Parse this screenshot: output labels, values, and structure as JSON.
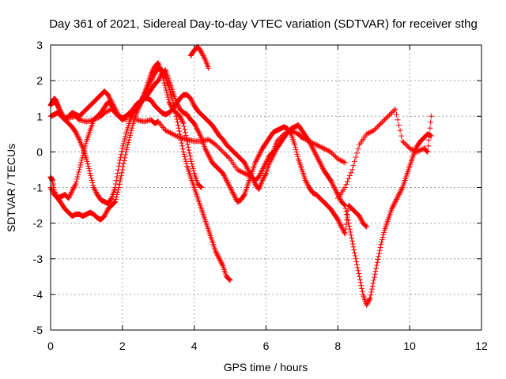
{
  "chart_data": {
    "type": "scatter",
    "title": "Day 361 of 2021, Sidereal Day-to-day VTEC variation (SDTVAR) for receiver sthg",
    "xlabel": "GPS time / hours",
    "ylabel": "SDTVAR / TECUs",
    "xlim": [
      0,
      12
    ],
    "ylim": [
      -5,
      3
    ],
    "xticks": [
      "0",
      "2",
      "4",
      "6",
      "8",
      "10",
      "12"
    ],
    "yticks": [
      "-5",
      "-4",
      "-3",
      "-2",
      "-1",
      "0",
      "1",
      "2",
      "3"
    ],
    "grid": true,
    "marker": "+",
    "color": "#ff0000",
    "series": [
      {
        "x": [
          0.0,
          0.1,
          0.2,
          0.3,
          0.5,
          0.7,
          0.8,
          1.0,
          1.2,
          1.4,
          1.5,
          1.7,
          1.9,
          2.1,
          2.4,
          2.6,
          2.8,
          2.9,
          3.0,
          3.2,
          3.4,
          3.6,
          3.8,
          4.0,
          4.2,
          4.4,
          4.6,
          4.8,
          5.0,
          5.2,
          5.4,
          5.6,
          5.7,
          5.8,
          5.9,
          6.0,
          6.1,
          6.2,
          6.3,
          6.5,
          6.7,
          6.9,
          7.0,
          7.2,
          7.4,
          7.6,
          7.8,
          8.0,
          8.2
        ],
        "y": [
          1.0,
          1.05,
          1.1,
          1.0,
          0.95,
          1.0,
          0.9,
          0.85,
          0.9,
          1.0,
          1.1,
          1.2,
          1.0,
          0.9,
          0.9,
          0.85,
          0.9,
          0.8,
          0.85,
          0.6,
          0.5,
          0.4,
          0.35,
          0.3,
          0.3,
          0.35,
          0.2,
          0.0,
          -0.2,
          -0.5,
          -0.6,
          -0.7,
          -0.8,
          -0.7,
          -0.5,
          -0.3,
          -0.1,
          0.0,
          0.3,
          0.5,
          0.6,
          0.5,
          0.4,
          0.3,
          0.2,
          0.1,
          0.0,
          -0.2,
          -0.3
        ]
      },
      {
        "x": [
          0.0,
          0.05,
          0.1,
          0.15,
          0.2,
          0.3,
          0.4,
          0.5,
          0.6,
          0.7,
          0.8,
          0.9,
          1.0,
          1.1,
          1.2,
          1.3,
          1.4,
          1.5,
          1.6,
          1.7,
          1.8,
          1.9,
          2.0,
          2.1,
          2.2,
          2.3,
          2.4,
          2.5,
          2.6,
          2.7,
          2.8,
          2.9,
          3.0,
          3.1,
          3.2,
          3.3,
          3.4,
          3.5,
          3.6,
          3.7,
          3.8,
          3.9,
          4.0,
          4.1,
          4.2
        ],
        "y": [
          1.3,
          1.4,
          1.5,
          1.45,
          1.3,
          1.1,
          0.9,
          0.8,
          0.7,
          0.55,
          0.35,
          0.1,
          -0.2,
          -0.6,
          -1.0,
          -1.2,
          -1.35,
          -1.4,
          -1.45,
          -1.3,
          -1.0,
          -0.4,
          0.1,
          0.5,
          0.85,
          1.1,
          1.3,
          1.4,
          1.6,
          1.9,
          2.2,
          2.4,
          2.5,
          2.2,
          1.8,
          1.4,
          1.2,
          1.1,
          1.0,
          0.8,
          0.3,
          -0.2,
          -0.6,
          -0.9,
          -1.0
        ]
      },
      {
        "x": [
          0.0,
          0.05,
          0.1,
          0.2,
          0.3,
          0.4,
          0.5,
          0.6,
          0.7,
          0.8,
          0.9,
          1.0,
          1.1,
          1.2,
          1.3,
          1.4,
          1.5,
          1.6,
          1.7,
          1.8,
          1.9,
          2.0,
          2.1,
          2.2,
          2.3,
          2.4,
          2.5,
          2.6,
          2.7,
          2.8,
          2.9,
          3.0,
          3.1,
          3.2,
          3.3,
          3.4,
          3.5,
          3.6,
          3.7,
          3.8,
          3.9,
          4.0,
          4.1,
          4.2,
          4.3,
          4.4,
          4.5,
          4.6,
          4.7,
          4.8,
          4.9,
          5.0
        ],
        "y": [
          -0.7,
          -0.8,
          -1.1,
          -1.3,
          -1.45,
          -1.6,
          -1.7,
          -1.8,
          -1.75,
          -1.75,
          -1.8,
          -1.75,
          -1.7,
          -1.75,
          -1.85,
          -1.9,
          -1.8,
          -1.6,
          -1.5,
          -1.4,
          -1.0,
          -0.5,
          0.0,
          0.4,
          0.8,
          1.1,
          1.35,
          1.6,
          1.8,
          2.0,
          2.2,
          2.35,
          2.3,
          2.1,
          1.8,
          1.45,
          1.0,
          0.5,
          0.0,
          -0.4,
          -0.7,
          -1.0,
          -1.3,
          -1.6,
          -1.9,
          -2.2,
          -2.5,
          -2.8,
          -3.0,
          -3.2,
          -3.5,
          -3.6
        ]
      },
      {
        "x": [
          0.0,
          0.1,
          0.2,
          0.3,
          0.4,
          0.5,
          0.6,
          0.7,
          0.8,
          0.9,
          1.0,
          1.1,
          1.2,
          1.3,
          1.4,
          1.5,
          1.6,
          1.7,
          1.8,
          1.9,
          2.0,
          2.1,
          2.2,
          2.3,
          2.4,
          2.5,
          2.6,
          2.7,
          2.8,
          2.9,
          3.0,
          3.1,
          3.2,
          3.3,
          3.4,
          3.5,
          3.6,
          3.7,
          3.8,
          3.9,
          4.0,
          4.1,
          4.2,
          4.3,
          4.4,
          4.5,
          4.6,
          4.7,
          4.8,
          4.9,
          5.0,
          5.1,
          5.2,
          5.3,
          5.4,
          5.5,
          5.6,
          5.7,
          5.8,
          5.9,
          6.0,
          6.1,
          6.2,
          6.3,
          6.4,
          6.5,
          6.6,
          6.7,
          6.8,
          6.9,
          7.0,
          7.1,
          7.2,
          7.3,
          7.4,
          7.5,
          7.6,
          7.7,
          7.8,
          7.9,
          8.0,
          8.1,
          8.2,
          8.3,
          8.4,
          8.5,
          8.6,
          8.7,
          8.8
        ],
        "y": [
          -1.0,
          -1.2,
          -1.3,
          -1.25,
          -1.2,
          -1.3,
          -1.1,
          -0.9,
          -0.5,
          -0.1,
          0.3,
          0.6,
          0.9,
          1.0,
          1.1,
          1.25,
          1.4,
          1.3,
          1.1,
          1.0,
          0.95,
          1.0,
          1.05,
          1.1,
          1.2,
          1.35,
          1.5,
          1.6,
          1.75,
          1.9,
          2.0,
          2.2,
          2.3,
          2.0,
          1.7,
          1.4,
          1.2,
          1.1,
          1.05,
          0.9,
          0.8,
          0.6,
          0.4,
          0.1,
          -0.1,
          -0.3,
          -0.4,
          -0.5,
          -0.6,
          -0.8,
          -1.0,
          -1.2,
          -1.4,
          -1.35,
          -1.2,
          -0.9,
          -0.6,
          -0.3,
          -0.1,
          0.1,
          0.25,
          0.4,
          0.55,
          0.6,
          0.65,
          0.7,
          0.65,
          0.5,
          0.2,
          -0.2,
          -0.5,
          -0.8,
          -1.0,
          -1.15,
          -1.2,
          -1.3,
          -1.4,
          -1.5,
          -1.6,
          -1.75,
          -1.9,
          -2.1,
          -2.3,
          -1.5,
          -1.6,
          -1.7,
          -1.8,
          -2.0,
          -2.1
        ]
      },
      {
        "x": [
          0.1,
          0.2,
          0.3,
          0.4,
          0.5,
          0.6,
          0.7,
          0.8,
          0.9,
          1.0,
          1.1,
          1.2,
          1.3,
          1.4,
          1.5,
          1.6,
          1.7,
          1.8,
          1.9,
          2.0,
          2.1,
          2.2,
          2.3,
          2.4,
          2.5,
          2.6,
          2.7,
          2.8,
          2.9,
          3.0,
          3.1,
          3.2,
          3.3,
          3.4,
          3.5,
          3.6,
          3.7,
          3.8,
          3.9,
          4.0,
          4.1,
          4.2,
          4.3,
          4.4,
          4.5,
          4.6,
          4.7,
          4.8,
          4.9,
          5.0,
          5.1,
          5.2,
          5.3,
          5.4,
          5.5,
          5.6,
          5.7,
          5.8,
          5.9,
          6.0,
          6.1,
          6.2,
          6.3,
          6.4,
          6.5,
          6.6,
          6.7,
          6.8,
          6.9,
          7.0,
          7.1,
          7.2,
          7.3,
          7.4,
          7.5,
          7.6,
          7.7,
          7.8,
          7.9,
          8.0,
          8.1,
          8.2,
          8.3,
          8.4,
          8.5,
          8.6,
          8.7,
          8.8,
          8.9,
          9.0,
          9.1,
          9.2,
          9.3,
          9.4,
          9.5,
          9.6,
          9.7,
          9.8,
          9.9,
          10.0,
          10.1,
          10.2,
          10.3,
          10.4,
          10.5,
          10.6
        ],
        "y": [
          1.4,
          1.3,
          1.0,
          0.9,
          1.0,
          1.1,
          1.05,
          1.0,
          1.1,
          1.2,
          1.3,
          1.4,
          1.5,
          1.6,
          1.7,
          1.6,
          1.4,
          1.2,
          1.0,
          0.9,
          1.0,
          1.1,
          1.2,
          1.35,
          1.4,
          1.5,
          1.5,
          1.45,
          1.3,
          1.2,
          1.1,
          1.05,
          1.1,
          1.2,
          1.35,
          1.5,
          1.6,
          1.6,
          1.5,
          1.3,
          1.15,
          1.05,
          0.95,
          0.85,
          0.75,
          0.6,
          0.45,
          0.35,
          0.2,
          0.1,
          0.0,
          -0.1,
          -0.2,
          -0.3,
          -0.5,
          -0.7,
          -0.9,
          -1.05,
          -0.8,
          -0.6,
          -0.3,
          -0.1,
          0.1,
          0.25,
          0.4,
          0.55,
          0.65,
          0.7,
          0.75,
          0.6,
          0.45,
          0.3,
          0.1,
          -0.1,
          -0.3,
          -0.5,
          -0.65,
          -0.8,
          -1.0,
          -1.2,
          -1.4,
          -1.5,
          -2.0,
          -2.5,
          -3.0,
          -3.5,
          -4.0,
          -4.3,
          -4.1,
          -3.6,
          -3.1,
          -2.6,
          -2.2,
          -1.9,
          -1.6,
          -1.4,
          -1.2,
          -1.0,
          -0.7,
          -0.4,
          -0.1,
          0.15,
          0.3,
          0.4,
          0.5,
          0.45
        ]
      },
      {
        "x": [
          8.0,
          8.2,
          8.4,
          8.6,
          8.8,
          9.0,
          9.2,
          9.4,
          9.6,
          9.8,
          10.0,
          10.2,
          10.4,
          10.5,
          10.6,
          3.9,
          4.0,
          4.1,
          4.2,
          4.3,
          4.4
        ],
        "y": [
          -1.3,
          -1.0,
          -0.5,
          0.2,
          0.5,
          0.6,
          0.8,
          1.0,
          1.2,
          0.3,
          0.1,
          0.0,
          0.1,
          0.0,
          1.0,
          2.7,
          2.85,
          2.95,
          2.8,
          2.6,
          2.35
        ]
      }
    ]
  }
}
